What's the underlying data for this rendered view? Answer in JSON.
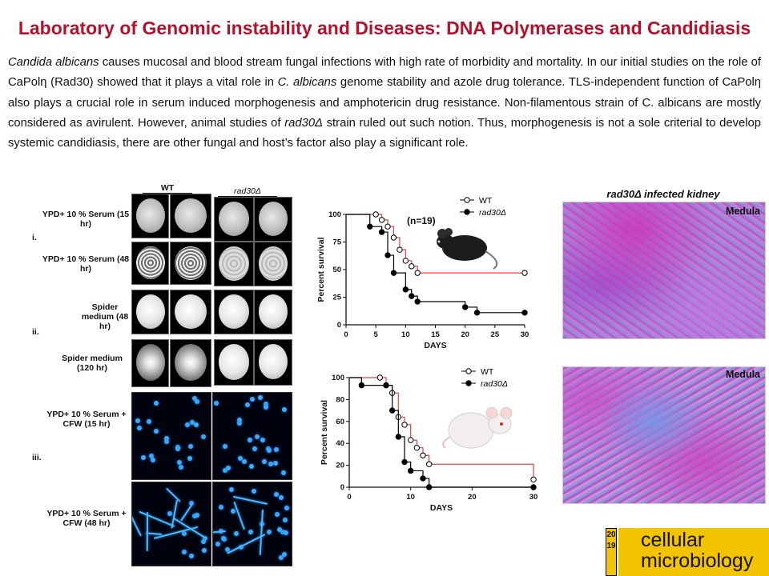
{
  "title": "Laboratory of Genomic instability and Diseases: DNA Polymerases and Candidiasis",
  "abstract": {
    "s1_a": "Candida albicans",
    "s1_b": " causes mucosal and blood stream fungal infections with high rate of morbidity and mortality. In our initial studies on the role of CaPolη (Rad30) showed that it plays a vital role in ",
    "s1_c": "C. albicans",
    "s1_d": " genome stability and azole drug tolerance. TLS-independent function of CaPolη also plays a crucial role in serum induced morphogenesis and amphotericin drug resistance. Non-filamentous strain of C. albicans are mostly considered as avirulent. However, animal studies of ",
    "s1_e": "rad30Δ",
    "s1_f": " strain ruled out such notion. Thus, morphogenesis is not a sole criterial to develop systemic candidiasis, there are other fungal and host’s factor also play a significant role."
  },
  "morphology": {
    "col_wt": "WT",
    "col_mut": "rad30Δ",
    "panel_i": "i.",
    "panel_ii": "ii.",
    "panel_iii": "iii.",
    "row1": "YPD+ 10 % Serum (15 hr)",
    "row2": "YPD+ 10 % Serum (48 hr)",
    "row3": "Spider medium (48 hr)",
    "row4": "Spider medium (120 hr)",
    "row5": "YPD+ 10 % Serum + CFW (15 hr)",
    "row6": "YPD+ 10 % Serum + CFW (48 hr)"
  },
  "kidney": {
    "title": "rad30Δ infected kidney",
    "label1": "Medula",
    "label2": "Medula"
  },
  "journal": {
    "year": "2019",
    "name_line1": "cellular",
    "name_line2": "microbiology"
  },
  "colors": {
    "title": "#b3122a",
    "wt_line": "#d9473c",
    "mut_line": "#000000",
    "stain_purple": "#a23ab8",
    "stain_blue": "#6f7fd0"
  },
  "chart_data": [
    {
      "type": "line",
      "annotation": "(n=19)",
      "xlabel": "DAYS",
      "ylabel": "Percent survival",
      "xlim": [
        0,
        30
      ],
      "ylim": [
        0,
        100
      ],
      "xticks": [
        0,
        5,
        10,
        15,
        20,
        25,
        30
      ],
      "yticks": [
        0,
        25,
        50,
        75,
        100
      ],
      "series": [
        {
          "name": "WT",
          "x": [
            0,
            5,
            6,
            7,
            8,
            9,
            10,
            11,
            12,
            30
          ],
          "y": [
            100,
            100,
            95,
            89,
            79,
            68,
            58,
            53,
            47,
            47
          ]
        },
        {
          "name": "rad30Δ",
          "x": [
            0,
            4,
            6,
            7,
            8,
            10,
            11,
            12,
            20,
            22,
            30
          ],
          "y": [
            100,
            89,
            84,
            63,
            47,
            32,
            26,
            21,
            16,
            11,
            11
          ]
        }
      ]
    },
    {
      "type": "line",
      "xlabel": "DAYS",
      "ylabel": "Percent survival",
      "xlim": [
        0,
        30
      ],
      "ylim": [
        0,
        100
      ],
      "xticks": [
        0,
        10,
        20,
        30
      ],
      "yticks": [
        0,
        20,
        40,
        60,
        80,
        100
      ],
      "series": [
        {
          "name": "WT",
          "x": [
            0,
            5,
            6,
            7,
            8,
            9,
            10,
            11,
            12,
            13,
            30
          ],
          "y": [
            100,
            100,
            93,
            86,
            64,
            57,
            43,
            36,
            29,
            21,
            7
          ]
        },
        {
          "name": "rad30Δ",
          "x": [
            0,
            2,
            6,
            7,
            8,
            9,
            10,
            12,
            13,
            30
          ],
          "y": [
            100,
            93,
            93,
            70,
            46,
            23,
            15,
            8,
            0,
            0
          ]
        }
      ]
    }
  ]
}
